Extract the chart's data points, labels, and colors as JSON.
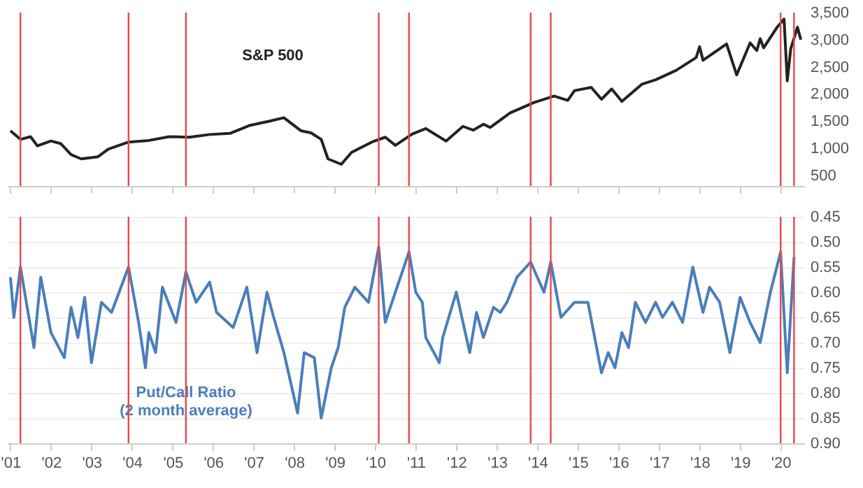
{
  "chart_data": [
    {
      "type": "line",
      "xlim": [
        "2000-12",
        "2020-08"
      ],
      "ylim": [
        300,
        3500
      ],
      "yticks": [
        {
          "value": 500,
          "label": "500"
        },
        {
          "value": 1000,
          "label": "1,000"
        },
        {
          "value": 1500,
          "label": "1,500"
        },
        {
          "value": 2000,
          "label": "2,000"
        },
        {
          "value": 2500,
          "label": "2,500"
        },
        {
          "value": 3000,
          "label": "3,000"
        },
        {
          "value": 3500,
          "label": "3,500"
        }
      ],
      "tick_labels": "y",
      "grid": false,
      "ref_lines": [
        {
          "axis": "x",
          "value": "2001-04",
          "color": "#e8474b"
        },
        {
          "axis": "x",
          "value": "2003-12",
          "color": "#e8474b"
        },
        {
          "axis": "x",
          "value": "2005-05",
          "color": "#e8474b"
        },
        {
          "axis": "x",
          "value": "2010-02",
          "color": "#e8474b"
        },
        {
          "axis": "x",
          "value": "2010-11",
          "color": "#e8474b"
        },
        {
          "axis": "x",
          "value": "2013-11",
          "color": "#e8474b"
        },
        {
          "axis": "x",
          "value": "2014-05",
          "color": "#e8474b"
        },
        {
          "axis": "x",
          "value": "2020-01",
          "color": "#e8474b"
        },
        {
          "axis": "x",
          "value": "2020-05",
          "color": "#e8474b"
        }
      ],
      "series": [
        {
          "name": "S&P 500",
          "color": "#222222",
          "x": [
            "2001-01",
            "2001-04",
            "2001-07",
            "2001-09",
            "2002-01",
            "2002-04",
            "2002-07",
            "2002-10",
            "2003-03",
            "2003-06",
            "2003-12",
            "2004-06",
            "2004-12",
            "2005-06",
            "2005-12",
            "2006-06",
            "2006-12",
            "2007-06",
            "2007-10",
            "2008-03",
            "2008-06",
            "2008-09",
            "2008-11",
            "2009-03",
            "2009-06",
            "2009-12",
            "2010-04",
            "2010-07",
            "2010-12",
            "2011-04",
            "2011-10",
            "2012-03",
            "2012-06",
            "2012-09",
            "2012-11",
            "2013-05",
            "2013-12",
            "2014-06",
            "2014-10",
            "2014-12",
            "2015-05",
            "2015-08",
            "2015-11",
            "2016-02",
            "2016-08",
            "2016-12",
            "2017-06",
            "2017-12",
            "2018-01",
            "2018-02",
            "2018-09",
            "2018-12",
            "2019-04",
            "2019-06",
            "2019-07",
            "2019-08",
            "2019-12",
            "2020-02",
            "2020-03",
            "2020-04",
            "2020-06",
            "2020-07"
          ],
          "values": [
            1320,
            1160,
            1210,
            1040,
            1130,
            1080,
            880,
            800,
            840,
            980,
            1110,
            1140,
            1210,
            1200,
            1250,
            1270,
            1420,
            1500,
            1560,
            1320,
            1280,
            1160,
            800,
            700,
            920,
            1110,
            1200,
            1050,
            1260,
            1360,
            1130,
            1400,
            1330,
            1440,
            1380,
            1650,
            1840,
            1960,
            1880,
            2060,
            2120,
            1900,
            2090,
            1860,
            2180,
            2260,
            2430,
            2670,
            2870,
            2620,
            2920,
            2350,
            2940,
            2800,
            3020,
            2850,
            3230,
            3380,
            2240,
            2830,
            3230,
            3000
          ]
        }
      ]
    },
    {
      "type": "line",
      "xlim": [
        "2000-12",
        "2020-08"
      ],
      "ylim": [
        0.9,
        0.45
      ],
      "yticks": [
        {
          "value": 0.45,
          "label": "0.45"
        },
        {
          "value": 0.5,
          "label": "0.50"
        },
        {
          "value": 0.55,
          "label": "0.55"
        },
        {
          "value": 0.6,
          "label": "0.60"
        },
        {
          "value": 0.65,
          "label": "0.65"
        },
        {
          "value": 0.7,
          "label": "0.70"
        },
        {
          "value": 0.75,
          "label": "0.75"
        },
        {
          "value": 0.8,
          "label": "0.80"
        },
        {
          "value": 0.85,
          "label": "0.85"
        },
        {
          "value": 0.9,
          "label": "0.90"
        }
      ],
      "xticks": [
        {
          "value": "2001",
          "label": "'01"
        },
        {
          "value": "2002",
          "label": "'02"
        },
        {
          "value": "2003",
          "label": "'03"
        },
        {
          "value": "2004",
          "label": "'04"
        },
        {
          "value": "2005",
          "label": "'05"
        },
        {
          "value": "2006",
          "label": "'06"
        },
        {
          "value": "2007",
          "label": "'07"
        },
        {
          "value": "2008",
          "label": "'08"
        },
        {
          "value": "2009",
          "label": "'09"
        },
        {
          "value": "2010",
          "label": "'10"
        },
        {
          "value": "2011",
          "label": "'11"
        },
        {
          "value": "2012",
          "label": "'12"
        },
        {
          "value": "2013",
          "label": "'13"
        },
        {
          "value": "2014",
          "label": "'14"
        },
        {
          "value": "2015",
          "label": "'15"
        },
        {
          "value": "2016",
          "label": "'16"
        },
        {
          "value": "2017",
          "label": "'17"
        },
        {
          "value": "2018",
          "label": "'18"
        },
        {
          "value": "2019",
          "label": "'19"
        },
        {
          "value": "2020",
          "label": "'20"
        }
      ],
      "grid": "y",
      "ref_lines": [
        {
          "axis": "x",
          "value": "2001-04",
          "color": "#e8474b"
        },
        {
          "axis": "x",
          "value": "2003-12",
          "color": "#e8474b"
        },
        {
          "axis": "x",
          "value": "2005-05",
          "color": "#e8474b"
        },
        {
          "axis": "x",
          "value": "2010-02",
          "color": "#e8474b"
        },
        {
          "axis": "x",
          "value": "2010-11",
          "color": "#e8474b"
        },
        {
          "axis": "x",
          "value": "2013-11",
          "color": "#e8474b"
        },
        {
          "axis": "x",
          "value": "2014-05",
          "color": "#e8474b"
        },
        {
          "axis": "x",
          "value": "2020-01",
          "color": "#e8474b"
        },
        {
          "axis": "x",
          "value": "2020-05",
          "color": "#e8474b"
        }
      ],
      "series": [
        {
          "name": "Put/Call Ratio\n(2 month average)",
          "color": "#4a7ebb",
          "x": [
            "2001-01",
            "2001-02",
            "2001-04",
            "2001-08",
            "2001-10",
            "2002-01",
            "2002-05",
            "2002-07",
            "2002-09",
            "2002-11",
            "2003-01",
            "2003-04",
            "2003-07",
            "2003-12",
            "2004-03",
            "2004-05",
            "2004-06",
            "2004-08",
            "2004-10",
            "2005-02",
            "2005-05",
            "2005-08",
            "2005-12",
            "2006-02",
            "2006-07",
            "2006-11",
            "2007-02",
            "2007-05",
            "2007-07",
            "2007-10",
            "2008-02",
            "2008-04",
            "2008-07",
            "2008-09",
            "2008-12",
            "2009-02",
            "2009-04",
            "2009-07",
            "2009-11",
            "2010-02",
            "2010-04",
            "2010-07",
            "2010-11",
            "2011-01",
            "2011-03",
            "2011-04",
            "2011-08",
            "2011-09",
            "2012-01",
            "2012-05",
            "2012-07",
            "2012-09",
            "2012-12",
            "2013-02",
            "2013-04",
            "2013-07",
            "2013-11",
            "2014-03",
            "2014-05",
            "2014-08",
            "2014-12",
            "2015-04",
            "2015-08",
            "2015-10",
            "2015-12",
            "2016-02",
            "2016-04",
            "2016-06",
            "2016-09",
            "2016-12",
            "2017-02",
            "2017-05",
            "2017-08",
            "2017-11",
            "2018-02",
            "2018-04",
            "2018-07",
            "2018-10",
            "2019-01",
            "2019-04",
            "2019-07",
            "2019-10",
            "2020-01",
            "2020-03",
            "2020-05"
          ],
          "values": [
            0.57,
            0.65,
            0.55,
            0.71,
            0.57,
            0.68,
            0.73,
            0.63,
            0.69,
            0.61,
            0.74,
            0.62,
            0.64,
            0.55,
            0.66,
            0.75,
            0.68,
            0.72,
            0.59,
            0.66,
            0.56,
            0.62,
            0.58,
            0.64,
            0.67,
            0.59,
            0.72,
            0.6,
            0.65,
            0.72,
            0.84,
            0.72,
            0.73,
            0.85,
            0.75,
            0.71,
            0.63,
            0.59,
            0.62,
            0.51,
            0.66,
            0.6,
            0.52,
            0.6,
            0.62,
            0.69,
            0.74,
            0.69,
            0.6,
            0.72,
            0.64,
            0.69,
            0.63,
            0.64,
            0.62,
            0.57,
            0.54,
            0.6,
            0.54,
            0.65,
            0.62,
            0.62,
            0.76,
            0.72,
            0.75,
            0.68,
            0.71,
            0.62,
            0.66,
            0.62,
            0.65,
            0.62,
            0.66,
            0.55,
            0.64,
            0.59,
            0.62,
            0.72,
            0.61,
            0.66,
            0.7,
            0.6,
            0.52,
            0.76,
            0.53
          ]
        }
      ]
    }
  ]
}
